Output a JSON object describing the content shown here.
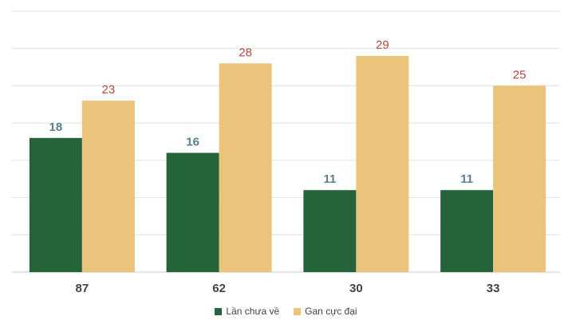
{
  "chart_data": {
    "type": "bar",
    "categories": [
      "87",
      "62",
      "30",
      "33"
    ],
    "series": [
      {
        "name": "Lần chưa về",
        "values": [
          18,
          16,
          11,
          11
        ],
        "color": "#25633a",
        "label_color": "#5a7f91"
      },
      {
        "name": "Gan cực đại",
        "values": [
          23,
          28,
          29,
          25
        ],
        "color": "#e9c47a",
        "label_color": "#b04a3a"
      }
    ],
    "ylim": [
      0,
      35
    ],
    "grid": true,
    "legend_position": "bottom"
  }
}
